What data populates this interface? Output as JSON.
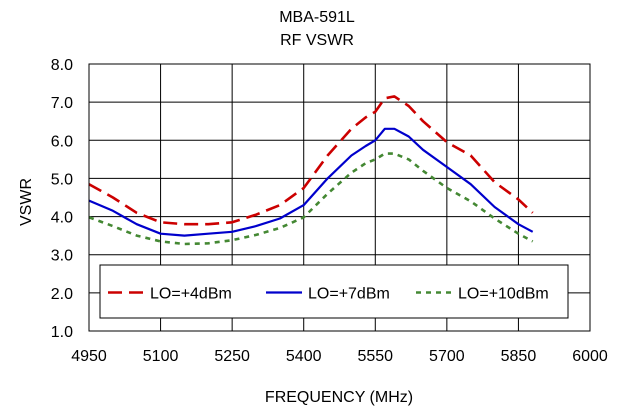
{
  "chart_data": {
    "type": "line",
    "title": "MBA-591L",
    "subtitle": "RF VSWR",
    "xlabel": "FREQUENCY (MHz)",
    "ylabel": "VSWR",
    "xlim": [
      4950,
      6000
    ],
    "ylim": [
      1.0,
      8.0
    ],
    "x_ticks": [
      "4950",
      "5100",
      "5250",
      "5400",
      "5550",
      "5700",
      "5850",
      "6000"
    ],
    "y_ticks": [
      "1.0",
      "2.0",
      "3.0",
      "4.0",
      "5.0",
      "6.0",
      "7.0",
      "8.0"
    ],
    "grid": true,
    "legend_position": "bottom",
    "series": [
      {
        "name": "LO=+4dBm",
        "color": "#cc0000",
        "dash": "dashed",
        "x": [
          4950,
          5000,
          5050,
          5100,
          5150,
          5200,
          5250,
          5300,
          5350,
          5400,
          5450,
          5500,
          5530,
          5550,
          5570,
          5590,
          5620,
          5650,
          5700,
          5750,
          5800,
          5850,
          5880
        ],
        "y": [
          4.85,
          4.5,
          4.1,
          3.85,
          3.8,
          3.8,
          3.85,
          4.05,
          4.3,
          4.75,
          5.6,
          6.3,
          6.6,
          6.75,
          7.1,
          7.15,
          6.9,
          6.5,
          5.95,
          5.6,
          4.9,
          4.45,
          4.1
        ]
      },
      {
        "name": "LO=+7dBm",
        "color": "#0000cc",
        "dash": "solid",
        "x": [
          4950,
          5000,
          5050,
          5100,
          5150,
          5200,
          5250,
          5300,
          5350,
          5400,
          5450,
          5500,
          5530,
          5550,
          5570,
          5590,
          5620,
          5650,
          5700,
          5750,
          5800,
          5850,
          5880
        ],
        "y": [
          4.42,
          4.15,
          3.8,
          3.55,
          3.5,
          3.55,
          3.6,
          3.75,
          3.95,
          4.3,
          5.0,
          5.6,
          5.85,
          6.0,
          6.3,
          6.3,
          6.1,
          5.75,
          5.3,
          4.85,
          4.25,
          3.8,
          3.6
        ]
      },
      {
        "name": "LO=+10dBm",
        "color": "#448833",
        "dash": "dotted",
        "x": [
          4950,
          5000,
          5050,
          5100,
          5150,
          5200,
          5250,
          5300,
          5350,
          5400,
          5450,
          5500,
          5530,
          5550,
          5570,
          5590,
          5620,
          5650,
          5700,
          5750,
          5800,
          5850,
          5880
        ],
        "y": [
          3.98,
          3.75,
          3.5,
          3.35,
          3.28,
          3.3,
          3.38,
          3.52,
          3.7,
          3.98,
          4.6,
          5.15,
          5.4,
          5.5,
          5.65,
          5.65,
          5.5,
          5.2,
          4.75,
          4.4,
          3.95,
          3.55,
          3.35
        ]
      }
    ]
  }
}
